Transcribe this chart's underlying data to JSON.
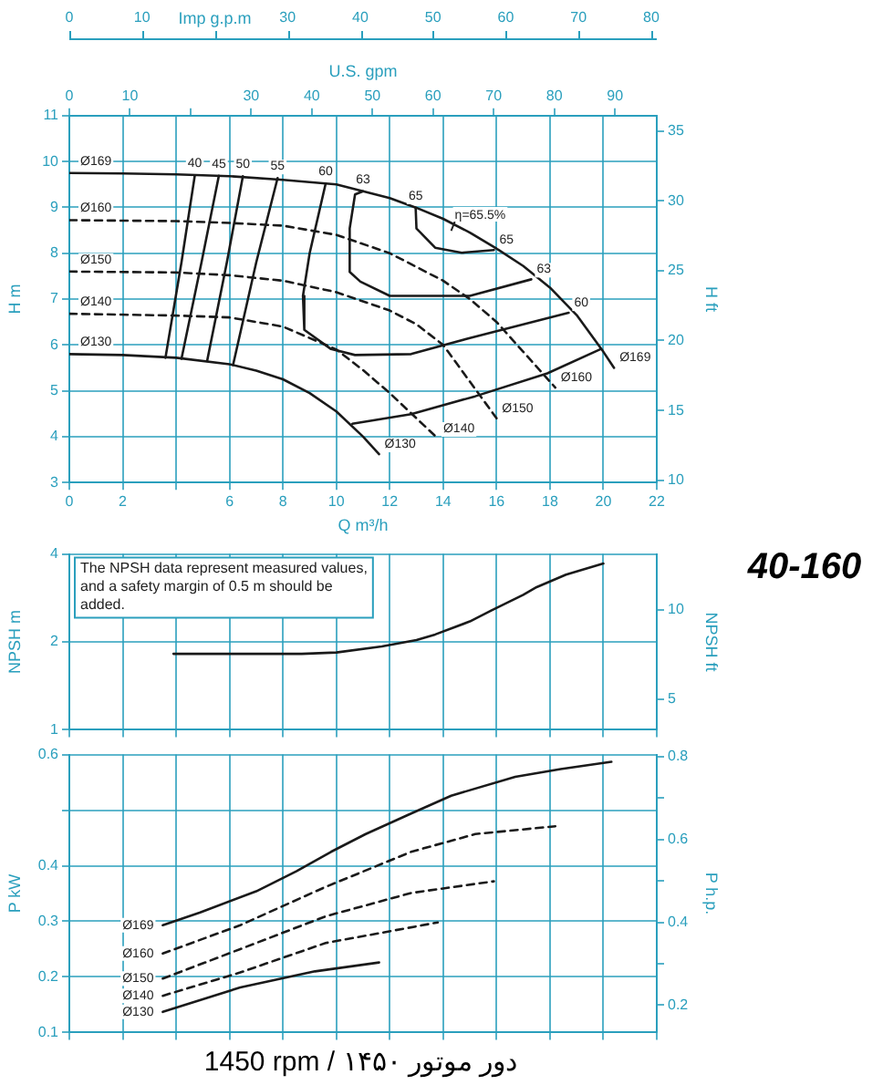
{
  "chart_data": [
    {
      "type": "other",
      "annotations": [
        "0",
        "10",
        "Imp g.p.m",
        "30",
        "40",
        "50",
        "60",
        "70",
        "80"
      ]
    },
    {
      "type": "line",
      "xlabel": "Q m³/h",
      "ylabel": "H m",
      "y2label": "H ft",
      "x2label": "U.S. gpm",
      "marker": "none",
      "grid": true,
      "xlim": [
        0,
        22
      ],
      "xticks": [
        0,
        2,
        {
          "value": 4,
          "label": null
        },
        6,
        8,
        10,
        12,
        14,
        16,
        18,
        20,
        22
      ],
      "x2lim": [
        0,
        96.9
      ],
      "x2ticks": [
        0,
        10,
        {
          "value": 20,
          "label": null
        },
        30,
        40,
        50,
        60,
        70,
        80,
        90
      ],
      "ylim": [
        3,
        11
      ],
      "yticks": [
        3,
        4,
        5,
        6,
        7,
        8,
        9,
        10,
        11
      ],
      "y2lim": [
        9.84,
        36.09
      ],
      "y2ticks": [
        10,
        15,
        20,
        25,
        30,
        35
      ],
      "annotations": [
        {
          "text": "η=65.5%",
          "x": 14.3,
          "y": 8.49
        }
      ],
      "series": [
        {
          "name": "Ø169",
          "color": "#1a1a1a",
          "line_style": "solid",
          "x": [
            0,
            2,
            4,
            6,
            8,
            10,
            11,
            12,
            13,
            14,
            15,
            16,
            17,
            18,
            19,
            20,
            20.4
          ],
          "values": [
            9.75,
            9.74,
            9.72,
            9.68,
            9.6,
            9.5,
            9.35,
            9.2,
            8.99,
            8.75,
            8.45,
            8.1,
            7.72,
            7.25,
            6.65,
            5.85,
            5.5
          ]
        },
        {
          "name": "Ø160",
          "color": "#1a1a1a",
          "line_style": "dashed",
          "x": [
            0,
            4,
            6,
            8,
            10,
            12,
            14,
            15,
            16,
            17,
            18.2
          ],
          "values": [
            8.72,
            8.7,
            8.66,
            8.6,
            8.4,
            8.0,
            7.4,
            7.0,
            6.5,
            5.85,
            5.07
          ]
        },
        {
          "name": "Ø150",
          "color": "#1a1a1a",
          "line_style": "dashed",
          "x": [
            0,
            4,
            6,
            8,
            10,
            12,
            13,
            14,
            15,
            16
          ],
          "values": [
            7.6,
            7.58,
            7.52,
            7.4,
            7.15,
            6.75,
            6.45,
            6.0,
            5.2,
            4.4
          ]
        },
        {
          "name": "Ø140",
          "color": "#1a1a1a",
          "line_style": "dashed",
          "x": [
            0,
            4,
            6,
            8,
            10,
            11,
            12,
            13,
            13.8
          ],
          "values": [
            6.68,
            6.64,
            6.6,
            6.4,
            5.9,
            5.45,
            4.95,
            4.4,
            3.96
          ]
        },
        {
          "name": "Ø130",
          "color": "#1a1a1a",
          "line_style": "solid",
          "x": [
            0,
            2,
            4,
            6,
            7,
            8,
            9,
            10,
            11,
            11.6
          ],
          "values": [
            5.8,
            5.78,
            5.72,
            5.58,
            5.44,
            5.25,
            4.95,
            4.55,
            4.0,
            3.62
          ]
        },
        {
          "name": "40",
          "color": "#1a1a1a",
          "line_style": "solid",
          "x": [
            4.7,
            4.2,
            3.6
          ],
          "values": [
            9.7,
            7.8,
            5.72
          ]
        },
        {
          "name": "45",
          "color": "#1a1a1a",
          "line_style": "solid",
          "x": [
            5.6,
            4.95,
            4.2
          ],
          "values": [
            9.69,
            7.8,
            5.7
          ]
        },
        {
          "name": "50",
          "color": "#1a1a1a",
          "line_style": "solid",
          "x": [
            6.5,
            5.9,
            5.16
          ],
          "values": [
            9.68,
            7.8,
            5.65
          ]
        },
        {
          "name": "55",
          "color": "#1a1a1a",
          "line_style": "solid",
          "x": [
            7.8,
            7.0,
            6.13
          ],
          "values": [
            9.64,
            7.8,
            5.56
          ]
        },
        {
          "name": "60",
          "color": "#1a1a1a",
          "line_style": "solid",
          "x": [
            9.6,
            9.0,
            8.75,
            8.8,
            9.8,
            10.7,
            12.8,
            15,
            17,
            18.7
          ],
          "values": [
            9.52,
            8.0,
            7.07,
            6.33,
            5.91,
            5.78,
            5.8,
            6.15,
            6.45,
            6.7
          ]
        },
        {
          "name": "63",
          "color": "#1a1a1a",
          "line_style": "solid",
          "x": [
            11.0,
            10.7,
            10.5,
            10.5,
            10.9,
            12.0,
            15.0,
            17.3
          ],
          "values": [
            9.35,
            9.28,
            8.54,
            7.59,
            7.38,
            7.07,
            7.07,
            7.43
          ]
        },
        {
          "name": "65",
          "color": "#1a1a1a",
          "line_style": "solid",
          "x": [
            12.97,
            13.0,
            13.7,
            14.7,
            15.9
          ],
          "values": [
            8.99,
            8.54,
            8.12,
            8.01,
            8.07
          ]
        },
        {
          "color": "#1a1a1a",
          "line_style": "solid",
          "x": [
            10.6,
            12.8,
            15.2,
            17.9,
            19.9
          ],
          "values": [
            4.28,
            4.49,
            4.88,
            5.38,
            5.91
          ]
        }
      ]
    },
    {
      "type": "other",
      "title": "40-160"
    },
    {
      "type": "line",
      "ylabel": "NPSH m",
      "y2label": "NPSH ft",
      "marker": "none",
      "grid": true,
      "log": "y",
      "tick_labels": "y",
      "xlim": [
        0,
        22
      ],
      "xticks": [
        0,
        2,
        4,
        6,
        8,
        10,
        12,
        14,
        16,
        18,
        20,
        22
      ],
      "ylim": [
        1,
        4
      ],
      "yticks": [
        1,
        2,
        4
      ],
      "y2lim": [
        3.28,
        13.12
      ],
      "y2ticks": [
        5,
        10
      ],
      "annotations": [
        "The NPSH data represent measured values, and a safety margin of 0.5 m should be added."
      ],
      "series": [
        {
          "color": "#1a1a1a",
          "line_style": "solid",
          "x": [
            3.9,
            6,
            8.7,
            10,
            11.7,
            13,
            13.7,
            15,
            15.8,
            17,
            17.5,
            18.6,
            20
          ],
          "values": [
            1.82,
            1.82,
            1.82,
            1.84,
            1.93,
            2.03,
            2.12,
            2.35,
            2.56,
            2.9,
            3.08,
            3.4,
            3.71
          ]
        }
      ]
    },
    {
      "type": "line",
      "ylabel": "P kW",
      "y2label": "P h.p.",
      "marker": "none",
      "grid": true,
      "tick_labels": "y",
      "xlim": [
        0,
        22
      ],
      "xticks": [
        0,
        2,
        4,
        6,
        8,
        10,
        12,
        14,
        16,
        18,
        20,
        22
      ],
      "ylim": [
        0.1,
        0.6
      ],
      "yticks": [
        0.1,
        0.2,
        0.3,
        0.4,
        {
          "value": 0.5,
          "label": null
        },
        0.6
      ],
      "y2lim": [
        0.134,
        0.805
      ],
      "y2ticks": [
        0.2,
        {
          "value": 0.3,
          "label": null
        },
        0.4,
        {
          "value": 0.5,
          "label": null
        },
        0.6,
        {
          "value": 0.7,
          "label": null
        },
        0.8
      ],
      "annotations": [
        "1450 rpm / دور موتور ۱۴۵۰"
      ],
      "series": [
        {
          "name": "Ø169",
          "color": "#1a1a1a",
          "line_style": "solid",
          "x": [
            3.5,
            4.9,
            7.0,
            8.5,
            9.8,
            11.1,
            12.8,
            14.3,
            16.7,
            18.4,
            20.3
          ],
          "values": [
            0.293,
            0.316,
            0.354,
            0.39,
            0.425,
            0.457,
            0.494,
            0.526,
            0.56,
            0.574,
            0.587
          ]
        },
        {
          "name": "Ø160",
          "color": "#1a1a1a",
          "line_style": "dashed",
          "x": [
            3.5,
            6.4,
            9.6,
            12.8,
            15.2,
            18.2
          ],
          "values": [
            0.242,
            0.293,
            0.362,
            0.425,
            0.457,
            0.471
          ]
        },
        {
          "name": "Ø150",
          "color": "#1a1a1a",
          "line_style": "dashed",
          "x": [
            3.5,
            6.4,
            9.6,
            12.8,
            15.9
          ],
          "values": [
            0.197,
            0.25,
            0.309,
            0.351,
            0.372
          ]
        },
        {
          "name": "Ø140",
          "color": "#1a1a1a",
          "line_style": "dashed",
          "x": [
            3.5,
            6.4,
            9.6,
            13.8
          ],
          "values": [
            0.166,
            0.208,
            0.261,
            0.298
          ]
        },
        {
          "name": "Ø130",
          "color": "#1a1a1a",
          "line_style": "solid",
          "x": [
            3.5,
            6.4,
            9.2,
            11.6
          ],
          "values": [
            0.137,
            0.181,
            0.21,
            0.226
          ]
        }
      ]
    }
  ]
}
